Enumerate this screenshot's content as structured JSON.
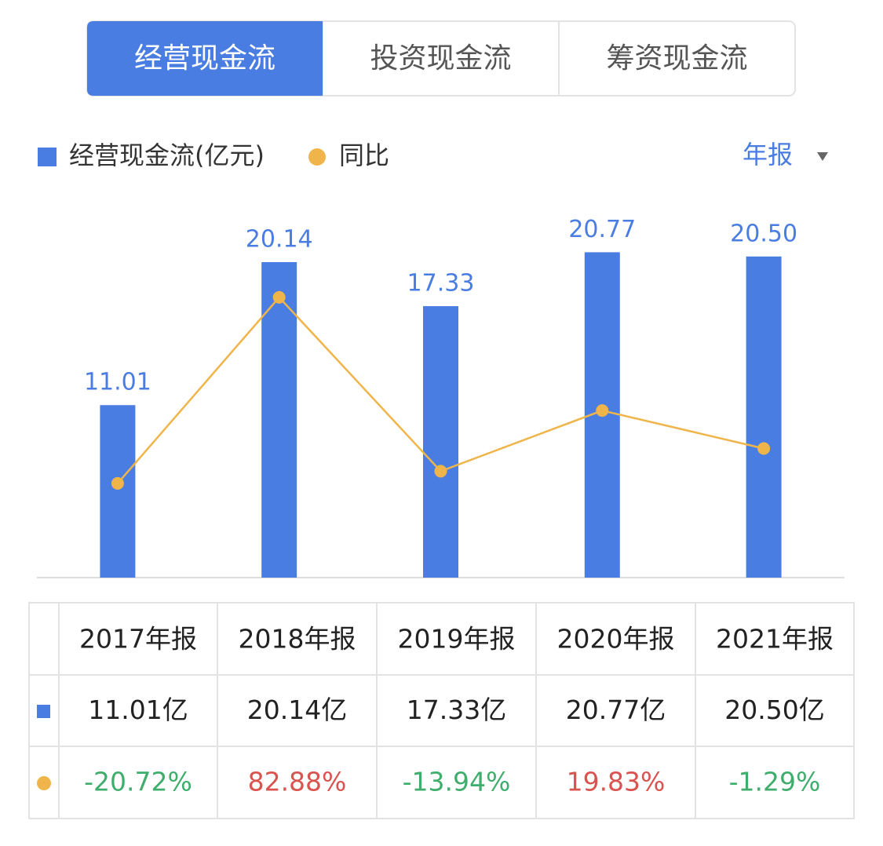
{
  "tabs": [
    "经营现金流",
    "投资现金流",
    "筹资现金流"
  ],
  "active_tab": 0,
  "period": "年报",
  "chart_data": {
    "type": "bar",
    "categories": [
      "2017年报",
      "2018年报",
      "2019年报",
      "2020年报",
      "2021年报"
    ],
    "series": [
      {
        "name": "经营现金流(亿元)",
        "color": "#4a7de2",
        "values": [
          11.01,
          20.14,
          17.33,
          20.77,
          20.5
        ],
        "value_labels": [
          "11.01",
          "20.14",
          "17.33",
          "20.77",
          "20.50"
        ]
      },
      {
        "name": "同比",
        "color": "#f0b54a",
        "type": "line",
        "axis": "y2",
        "values": [
          -20.72,
          82.88,
          -13.94,
          19.83,
          -1.29
        ]
      }
    ],
    "ylim": [
      0,
      25
    ],
    "y2lim": [
      -73.2,
      144.9
    ]
  },
  "table": {
    "header": [
      "2017年报",
      "2018年报",
      "2019年报",
      "2020年报",
      "2021年报"
    ],
    "rows": [
      [
        "11.01亿",
        "20.14亿",
        "17.33亿",
        "20.77亿",
        "20.50亿"
      ],
      [
        "-20.72%",
        "82.88%",
        "-13.94%",
        "19.83%",
        "-1.29%"
      ]
    ],
    "positive_color": "#d9534f",
    "negative_color": "#3fae6d"
  }
}
